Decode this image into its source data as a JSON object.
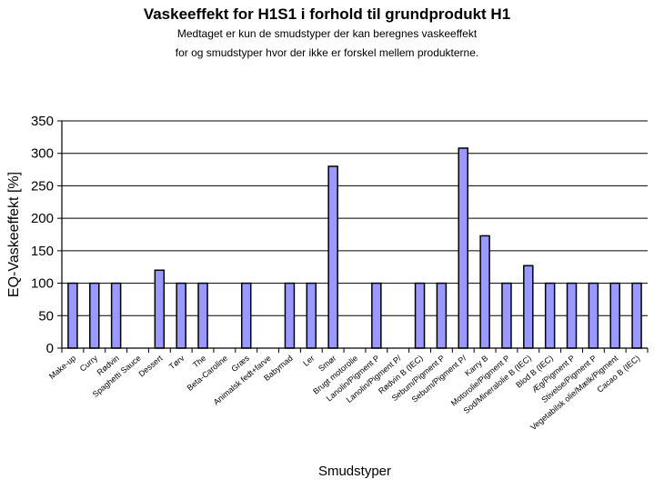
{
  "chart_data": {
    "type": "bar",
    "title": "Vaskeeffekt for H1S1 i forhold til grundprodukt H1",
    "subtitle": [
      "Medtaget er kun de smudstyper der kan beregnes vaskeeffekt",
      "for og smudstyper hvor der ikke er forskel mellem produkterne."
    ],
    "xlabel": "Smudstyper",
    "ylabel": "EQ-Vaskeeffekt [%]",
    "ylim": [
      0,
      350
    ],
    "yticks": [
      0,
      50,
      100,
      150,
      200,
      250,
      300,
      350
    ],
    "grid": true,
    "bar_color": "#9999ff",
    "categories": [
      "Make-up",
      "Curry",
      "Rødvin",
      "Spaghetti Sauce",
      "Dessert",
      "Tørv",
      "The",
      "Beta-Caroline",
      "Græs",
      "Animalsk fedt+farve",
      "Babymad",
      "Ler",
      "Smør",
      "Brugt motorolie",
      "Lanolin/Pigment P",
      "Lanolin/Pigment P/",
      "Rødvin B (IEC)",
      "Sebum/Pigment P",
      "Sebum/Pigment P/",
      "Karry B",
      "Motorolie/Pigment P",
      "Sod/Mineralolie B (IEC)",
      "Blod B (IEC)",
      "Æg/Pigment P",
      "Stivelse/Pigment P",
      "Vegetabilsk olie/Mælk/Pigment",
      "Cacao B (IEC)"
    ],
    "values": [
      100,
      100,
      100,
      null,
      120,
      100,
      100,
      null,
      100,
      null,
      100,
      100,
      280,
      null,
      100,
      null,
      100,
      100,
      308,
      173,
      100,
      127,
      100,
      100,
      100,
      100,
      100
    ]
  }
}
